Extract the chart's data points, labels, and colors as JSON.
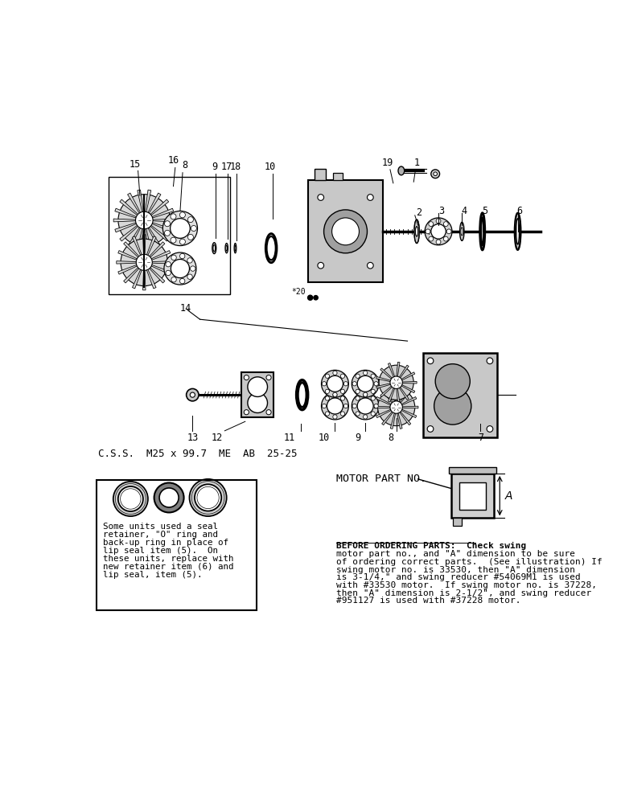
{
  "bg_color": "#ffffff",
  "fig_width": 7.72,
  "fig_height": 10.0,
  "css_line": "C.S.S.  M25 x 99.7  ME  AB  25-25",
  "box_left_text_lines": [
    "Some units used a seal",
    "retainer, \"O\" ring and",
    "back-up ring in place of",
    "lip seal item (5).  On",
    "these units, replace with",
    "new retainer item (6) and",
    "lip seal, item (5)."
  ],
  "motor_part_label": "MOTOR PART NO.",
  "before_ordering_lines": [
    "BEFORE ORDERING PARTS:  Check swing",
    "motor part no., and \"A\" dimension to be sure",
    "of ordering correct parts.  (See illustration) If",
    "swing motor no. is 33530, then \"A\" dimension",
    "is 3-1/4,\" and swing reducer #54069M1 is used",
    "with #33530 motor.  If swing motor no. is 37228,",
    "then \"A\" dimension is 2-1/2\", and swing reducer",
    "#951127 is used with #37228 motor."
  ]
}
